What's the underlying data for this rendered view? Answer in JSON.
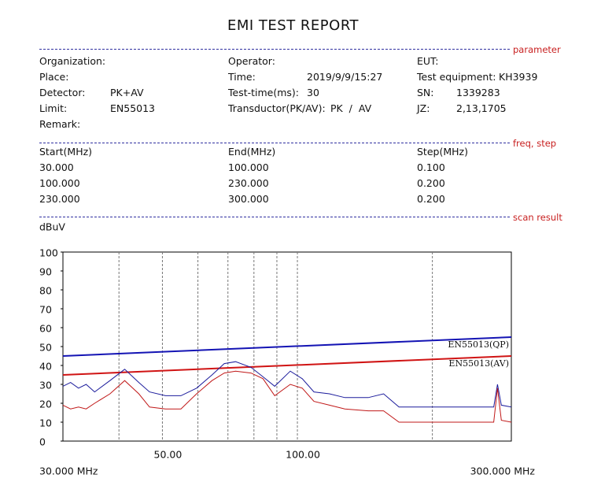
{
  "header": {
    "title": "EMI TEST REPORT"
  },
  "sections": [
    "parameter",
    "freq, step",
    "scan result"
  ],
  "parameters": [
    {
      "label": "Organization:"
    },
    {
      "label": "Operator:"
    },
    {
      "label": "EUT:"
    },
    {
      "label": "Place:"
    },
    {
      "label": "Time:",
      "value": "2019/9/9/15:27"
    },
    {
      "label": "Test equipment:",
      "value": "KH3939"
    },
    {
      "label": "Detector:",
      "value": "PK+AV"
    },
    {
      "label": "Test-time(ms):",
      "value": "30"
    },
    {
      "label": "SN:",
      "value": "1339283"
    },
    {
      "label": "Limit:",
      "value": "EN55013"
    },
    {
      "label": "Transductor(PK/AV):",
      "value": "PK  /  AV"
    },
    {
      "label": "JZ:",
      "value": "2,13,1705"
    },
    {
      "label": "Remark:"
    }
  ],
  "table": {
    "header": [
      "Start(MHz)",
      "End(MHz)",
      "Step(MHz)"
    ],
    "rows": [
      [
        "30.000",
        "100.000",
        "0.100"
      ],
      [
        "100.000",
        "230.000",
        "0.200"
      ],
      [
        "230.000",
        "300.000",
        "0.200"
      ]
    ]
  },
  "chart_data": {
    "type": "line",
    "y_label": "dBuV",
    "x_log": true,
    "grid": "x",
    "xlim": [
      30,
      300
    ],
    "xlim_labels": [
      "30.000 MHz",
      "300.000 MHz"
    ],
    "xticks": [
      {
        "value": 40,
        "label": null
      },
      {
        "value": 50,
        "label": "50.00"
      },
      {
        "value": 60,
        "label": null
      },
      {
        "value": 70,
        "label": null
      },
      {
        "value": 80,
        "label": null
      },
      {
        "value": 90,
        "label": null
      },
      {
        "value": 100,
        "label": "100.00"
      },
      {
        "value": 200,
        "label": null
      }
    ],
    "ylim": [
      0,
      100
    ],
    "yticks": [
      0,
      10,
      20,
      30,
      40,
      50,
      60,
      70,
      80,
      90,
      100
    ],
    "series": [
      {
        "name": "EN55013(QP)",
        "color": "#1414b4",
        "x": [
          30,
          300
        ],
        "values": [
          45,
          55
        ]
      },
      {
        "name": "EN55013(AV)",
        "color": "#d01414",
        "x": [
          30,
          300
        ],
        "values": [
          35,
          45
        ]
      },
      {
        "color": "#1c1c9c",
        "x": [
          30,
          31.2,
          32.5,
          33.8,
          35.3,
          38.2,
          41.2,
          44.3,
          46.8,
          50.8,
          55.0,
          59.6,
          64.5,
          68.7,
          72.8,
          78.8,
          83.8,
          89.0,
          96.4,
          102.5,
          108.9,
          117.9,
          127.6,
          143.9,
          155.7,
          168.5,
          197.3,
          243,
          274,
          279.4,
          285,
          300
        ],
        "values": [
          29,
          31,
          28,
          30,
          26,
          32,
          38,
          31,
          26,
          24,
          24,
          28,
          35,
          41,
          42,
          39,
          34,
          29,
          37,
          33,
          26,
          25,
          23,
          23,
          25,
          18,
          18,
          18,
          18,
          30,
          19,
          18
        ]
      },
      {
        "color": "#c01818",
        "x": [
          30,
          31.2,
          32.5,
          33.8,
          35.3,
          38.2,
          41.2,
          44.3,
          46.8,
          50.8,
          55.0,
          59.6,
          64.5,
          68.7,
          72.8,
          78.8,
          83.8,
          89.0,
          96.4,
          102.5,
          108.9,
          117.9,
          127.6,
          143.9,
          155.7,
          168.5,
          197.3,
          243,
          274,
          279.4,
          285,
          300
        ],
        "values": [
          19,
          17,
          18,
          17,
          20,
          25,
          32,
          25,
          18,
          17,
          17,
          25,
          32,
          36,
          37,
          36,
          33,
          24,
          30,
          28,
          21,
          19,
          17,
          16,
          16,
          10,
          10,
          10,
          10,
          28,
          11,
          10
        ]
      }
    ]
  }
}
